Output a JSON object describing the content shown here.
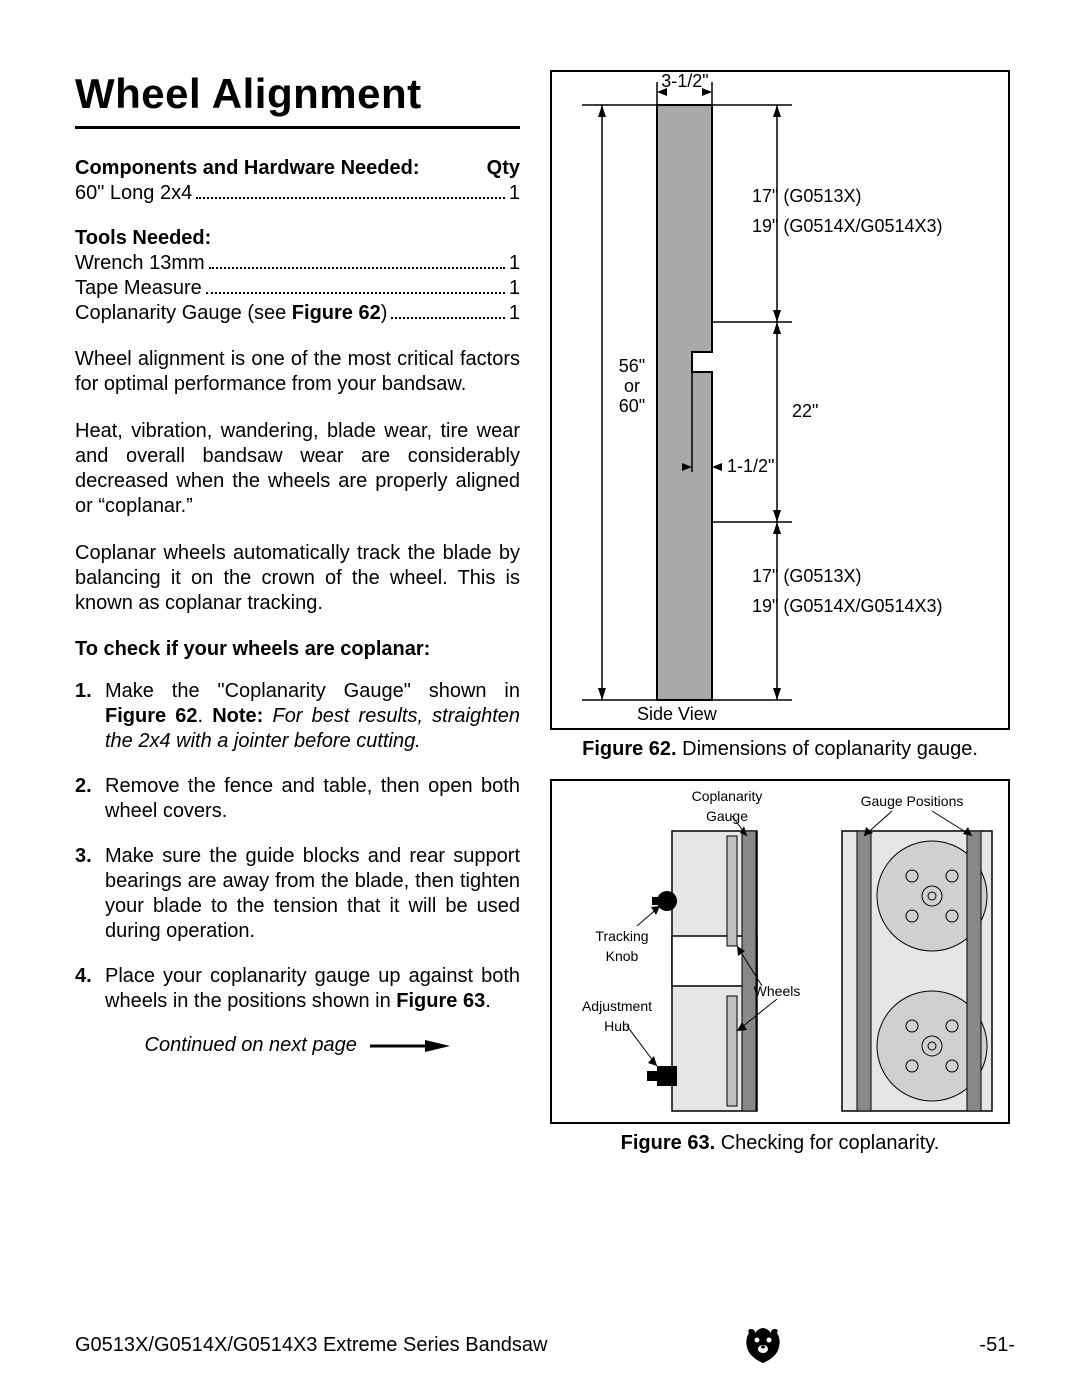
{
  "title": "Wheel Alignment",
  "components_head_left": "Components and Hardware Needed:",
  "components_head_right": "Qty",
  "comp1_label": "60\" Long 2x4",
  "comp1_qty": "1",
  "tools_head": "Tools Needed:",
  "tool1_label": "Wrench 13mm",
  "tool1_qty": "1",
  "tool2_label": "Tape Measure",
  "tool2_qty": "1",
  "tool3_label_a": "Coplanarity Gauge (see ",
  "tool3_label_b": "Figure 62",
  "tool3_label_c": ")",
  "tool3_qty": "1",
  "p1": "Wheel alignment is one of the most critical factors for optimal performance from your bandsaw.",
  "p2": "Heat, vibration, wandering, blade wear, tire wear and overall bandsaw wear are considerably decreased when the wheels are properly aligned or “coplanar.”",
  "p3": "Coplanar wheels automatically track the blade by balancing it on the crown of the wheel. This is known as coplanar tracking.",
  "check_head": "To check if your wheels are coplanar:",
  "s1a": "Make the \"Coplanarity Gauge\" shown in ",
  "s1b": "Figure 62",
  "s1c": ". ",
  "s1d": "Note:",
  "s1e": " For best results, straighten the 2x4 with a jointer before cutting.",
  "s2": "Remove the fence and table, then open both wheel covers.",
  "s3": "Make sure the guide blocks and rear support bearings are away from the blade, then tighten your blade to the tension that it will be used during operation.",
  "s4a": "Place your coplanarity gauge up against both wheels in the positions shown in ",
  "s4b": "Figure 63",
  "s4c": ".",
  "cont": "Continued on next page",
  "fig62": {
    "top_dim": "3-1/2\"",
    "upper_label1": "17\" (G0513X)",
    "upper_label2": "19\" (G0514X/G0514X3)",
    "left_dim": "56\"\nor\n60\"",
    "mid_dim": "22\"",
    "notch_dim": "1-1/2\"",
    "lower_label1": "17\" (G0513X)",
    "lower_label2": "19\" (G0514X/G0514X3)",
    "side_view": "Side View",
    "caption_a": "Figure 62.",
    "caption_b": " Dimensions of coplanarity gauge."
  },
  "fig63": {
    "coplanarity": "Coplanarity\nGauge",
    "gauge_pos": "Gauge Positions",
    "tracking": "Tracking\nKnob",
    "wheels": "Wheels",
    "adjust": "Adjustment\nHub",
    "caption_a": "Figure 63.",
    "caption_b": " Checking for coplanarity."
  },
  "footer_left": "G0513X/G0514X/G0514X3 Extreme Series Bandsaw",
  "footer_right": "-51-"
}
